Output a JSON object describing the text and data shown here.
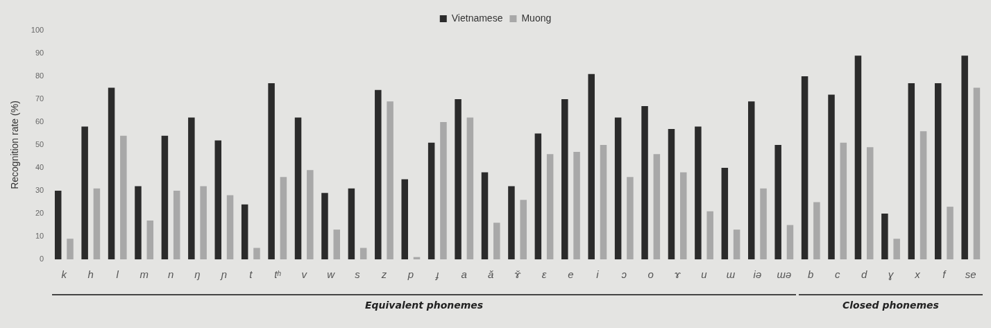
{
  "chart_data": {
    "type": "bar",
    "ylabel": "Recognition rate (%)",
    "categories": [
      "k",
      "h",
      "l",
      "m",
      "n",
      "ŋ",
      "ɲ",
      "t",
      "tʰ",
      "v",
      "w",
      "s",
      "z",
      "p",
      "ɟ",
      "a",
      "ă",
      "ɤ̆",
      "ɛ",
      "e",
      "i",
      "ɔ",
      "o",
      "ɤ",
      "u",
      "ɯ",
      "iə",
      "ɯə",
      "b",
      "c",
      "d",
      "ɣ",
      "x",
      "f",
      "se"
    ],
    "series": [
      {
        "name": "Vietnamese",
        "color": "#2b2b2b",
        "values": [
          30,
          58,
          75,
          32,
          54,
          62,
          52,
          24,
          77,
          62,
          29,
          31,
          74,
          35,
          51,
          70,
          38,
          32,
          55,
          70,
          81,
          62,
          67,
          57,
          58,
          40,
          69,
          50,
          80,
          72,
          89,
          20,
          77,
          77,
          89
        ]
      },
      {
        "name": "Muong",
        "color": "#a8a8a8",
        "values": [
          9,
          31,
          54,
          17,
          30,
          32,
          28,
          5,
          36,
          39,
          13,
          5,
          69,
          1,
          60,
          62,
          16,
          26,
          46,
          47,
          50,
          36,
          46,
          38,
          21,
          13,
          31,
          15,
          25,
          51,
          49,
          9,
          56,
          23,
          75
        ]
      }
    ],
    "ylim": [
      0,
      100
    ],
    "yticks": [
      0,
      10,
      20,
      30,
      40,
      50,
      60,
      70,
      80,
      90,
      100
    ],
    "grid": false,
    "legend": "top",
    "annotations": [
      "Equivalent phonemes",
      "Closed phonemes"
    ]
  }
}
